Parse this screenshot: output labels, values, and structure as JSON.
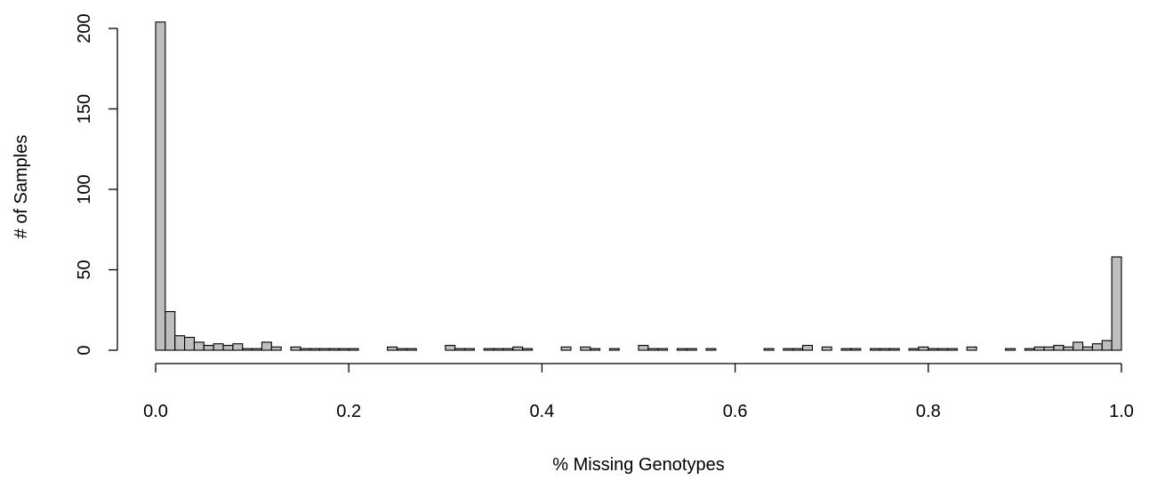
{
  "chart_data": {
    "type": "bar",
    "title": "",
    "xlabel": "% Missing Genotypes",
    "ylabel": "# of Samples",
    "xlim": [
      0,
      1
    ],
    "ylim": [
      0,
      200
    ],
    "bin_width": 0.01,
    "grid": false,
    "x_ticks": [
      0.0,
      0.2,
      0.4,
      0.6,
      0.8,
      1.0
    ],
    "x_tick_labels": [
      "0.0",
      "0.2",
      "0.4",
      "0.6",
      "0.8",
      "1.0"
    ],
    "y_ticks": [
      0,
      50,
      100,
      150,
      200
    ],
    "y_tick_labels": [
      "0",
      "50",
      "100",
      "150",
      "200"
    ],
    "bar_fill": "#bebebe",
    "values": [
      204,
      24,
      9,
      8,
      5,
      3,
      4,
      3,
      4,
      1,
      1,
      5,
      2,
      0,
      2,
      1,
      1,
      1,
      1,
      1,
      1,
      0,
      0,
      0,
      2,
      1,
      1,
      0,
      0,
      0,
      3,
      1,
      1,
      0,
      1,
      1,
      1,
      2,
      1,
      0,
      0,
      0,
      2,
      0,
      2,
      1,
      0,
      1,
      0,
      0,
      3,
      1,
      1,
      0,
      1,
      1,
      0,
      1,
      0,
      0,
      0,
      0,
      0,
      1,
      0,
      1,
      1,
      3,
      0,
      2,
      0,
      1,
      1,
      0,
      1,
      1,
      1,
      0,
      1,
      2,
      1,
      1,
      1,
      0,
      2,
      0,
      0,
      0,
      1,
      0,
      1,
      2,
      2,
      3,
      2,
      5,
      2,
      4,
      6,
      58
    ]
  }
}
